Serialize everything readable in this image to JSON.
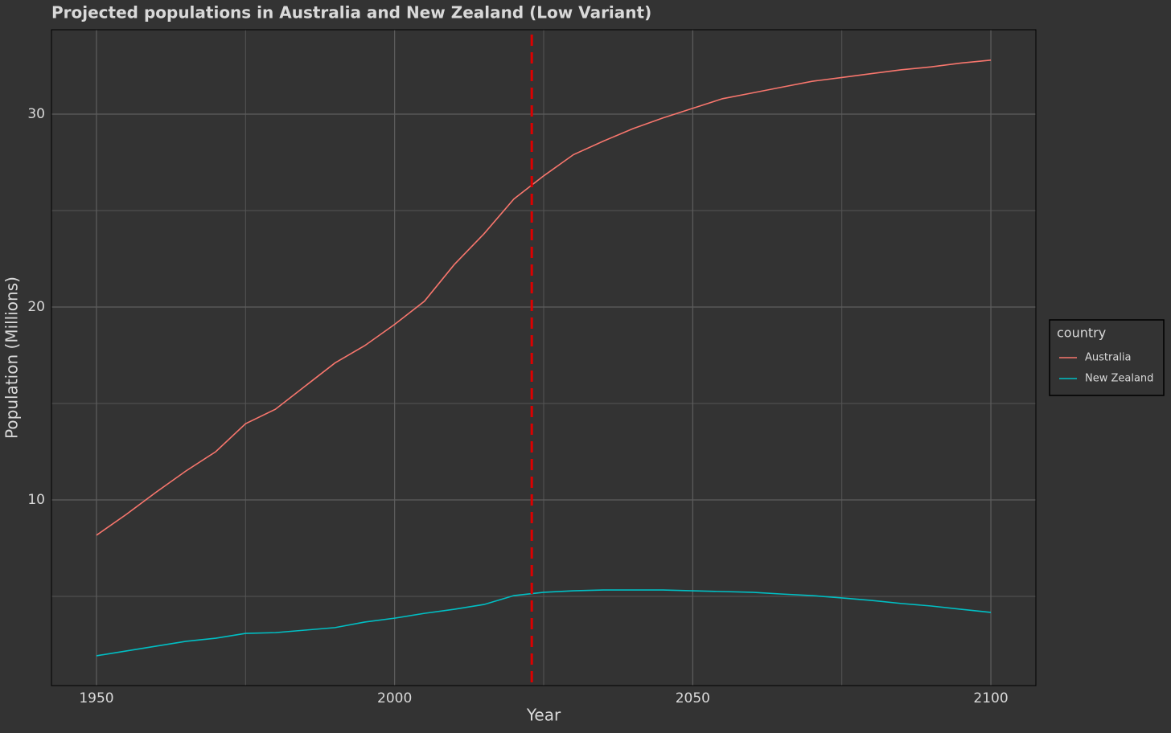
{
  "chart_data": {
    "type": "line",
    "title": "Projected populations in Australia and New Zealand (Low Variant)",
    "x_label": "Year",
    "y_label": "Population (Millions)",
    "x": [
      1950,
      1955,
      1960,
      1965,
      1970,
      1975,
      1980,
      1985,
      1990,
      1995,
      2000,
      2005,
      2010,
      2015,
      2020,
      2025,
      2030,
      2035,
      2040,
      2045,
      2050,
      2055,
      2060,
      2065,
      2070,
      2075,
      2080,
      2085,
      2090,
      2095,
      2100
    ],
    "series": [
      {
        "name": "Australia",
        "color": "#f8766d",
        "values": [
          8.17,
          9.25,
          10.4,
          11.5,
          12.5,
          13.95,
          14.7,
          15.9,
          17.1,
          18.0,
          19.1,
          20.3,
          22.2,
          23.8,
          25.6,
          26.8,
          27.9,
          28.6,
          29.25,
          29.8,
          30.3,
          30.8,
          31.1,
          31.4,
          31.7,
          31.9,
          32.1,
          32.3,
          32.45,
          32.65,
          32.8
        ]
      },
      {
        "name": "New Zealand",
        "color": "#00bfc4",
        "values": [
          1.92,
          2.17,
          2.42,
          2.67,
          2.83,
          3.08,
          3.12,
          3.25,
          3.38,
          3.67,
          3.87,
          4.12,
          4.33,
          4.58,
          5.04,
          5.21,
          5.29,
          5.33,
          5.33,
          5.33,
          5.29,
          5.25,
          5.21,
          5.12,
          5.04,
          4.92,
          4.79,
          4.63,
          4.5,
          4.33,
          4.17
        ]
      }
    ],
    "xlim": [
      1942.45,
      2107.55
    ],
    "xticks": [
      1950,
      2000,
      2050,
      2100
    ],
    "x_minor_grid": [
      1975,
      2025,
      2075
    ],
    "ylim": [
      0.375,
      34.375
    ],
    "yticks": [
      10,
      20,
      30
    ],
    "y_minor_grid": [
      5,
      15,
      25
    ],
    "grid": true,
    "vline": {
      "x": 2023,
      "color": "#dd0000"
    },
    "legend_title": "country",
    "legend_position": "right"
  }
}
